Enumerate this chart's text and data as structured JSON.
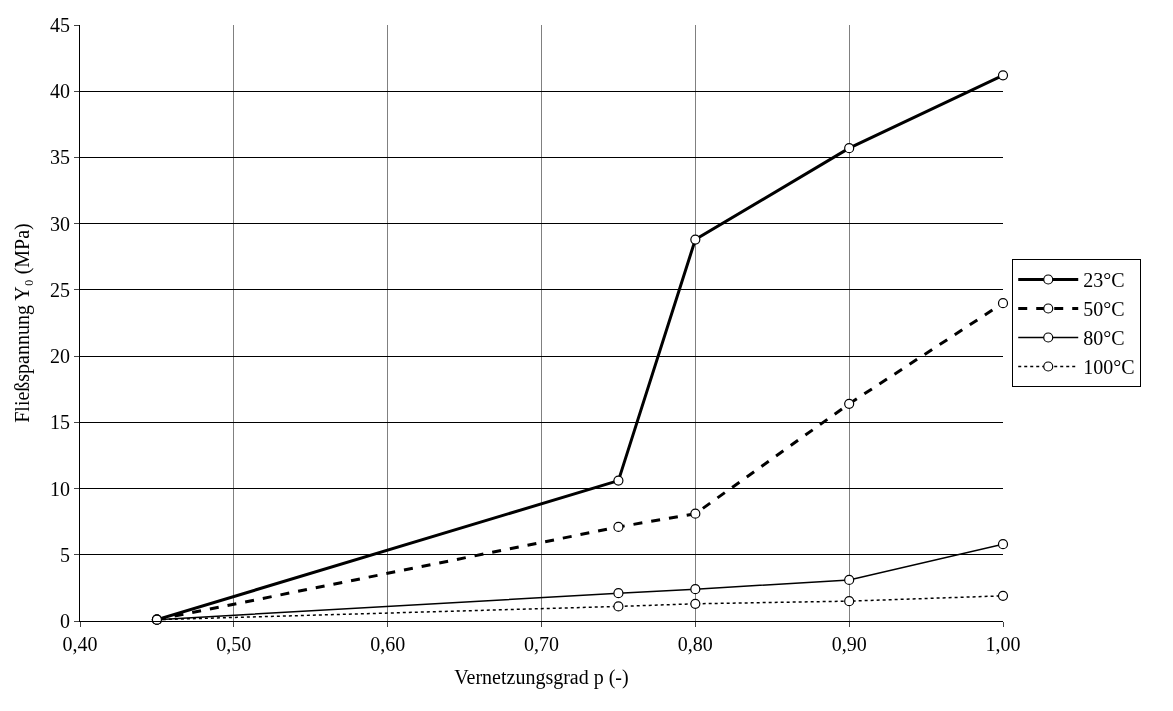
{
  "chart_data": {
    "type": "line",
    "xlabel": "Vernetzungsgrad p (-)",
    "ylabel": "Fließspannung Y₀ (MPa)",
    "x": [
      0.45,
      0.75,
      0.8,
      0.9,
      1.0
    ],
    "series": [
      {
        "name": "23°C",
        "color": "#000000",
        "line_style": "solid",
        "values": [
          0.1,
          10.6,
          28.8,
          35.7,
          41.2
        ]
      },
      {
        "name": "50°C",
        "color": "#000000",
        "line_style": "dashed",
        "values": [
          0.1,
          7.1,
          8.1,
          16.4,
          24.0
        ]
      },
      {
        "name": "80°C",
        "color": "#000000",
        "line_style": "solid",
        "values": [
          0.1,
          2.1,
          2.4,
          3.1,
          5.8
        ]
      },
      {
        "name": "100°C",
        "color": "#000000",
        "line_style": "dotted",
        "values": [
          0.1,
          1.1,
          1.3,
          1.5,
          1.9
        ]
      }
    ],
    "xlim": [
      0.4,
      1.0
    ],
    "xticks": [
      {
        "value": 0.4,
        "label": "0,40"
      },
      {
        "value": 0.5,
        "label": "0,50"
      },
      {
        "value": 0.6,
        "label": "0,60"
      },
      {
        "value": 0.7,
        "label": "0,70"
      },
      {
        "value": 0.8,
        "label": "0,80"
      },
      {
        "value": 0.9,
        "label": "0,90"
      },
      {
        "value": 1.0,
        "label": "1,00"
      }
    ],
    "ylim": [
      0,
      45
    ],
    "yticks": [
      0,
      5,
      10,
      15,
      20,
      25,
      30,
      35,
      40,
      45
    ],
    "grid": true,
    "legend": "right",
    "marker": "circle"
  }
}
